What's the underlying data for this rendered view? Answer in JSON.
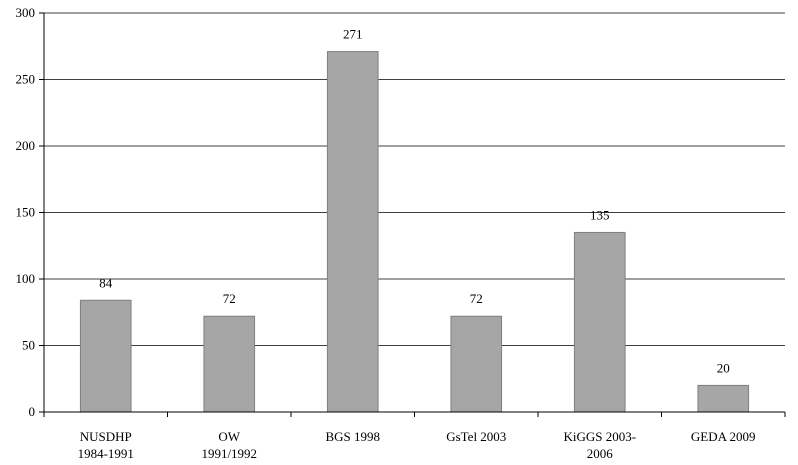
{
  "chart_data": {
    "type": "bar",
    "categories": [
      [
        "NUSDHP",
        "1984-1991"
      ],
      [
        "OW",
        "1991/1992"
      ],
      [
        "BGS 1998"
      ],
      [
        "GsTel 2003"
      ],
      [
        "KiGGS 2003-",
        "2006"
      ],
      [
        "GEDA 2009"
      ]
    ],
    "values": [
      84,
      72,
      271,
      72,
      135,
      20
    ],
    "data_labels": [
      "84",
      "72",
      "271",
      "72",
      "135",
      "20"
    ],
    "title": "",
    "xlabel": "",
    "ylabel": "",
    "ylim": [
      0,
      300
    ],
    "yticks": [
      0,
      50,
      100,
      150,
      200,
      250,
      300
    ],
    "grid": true,
    "bar_color": "#a6a6a6",
    "bar_edge_color": "#7f7f7f"
  }
}
